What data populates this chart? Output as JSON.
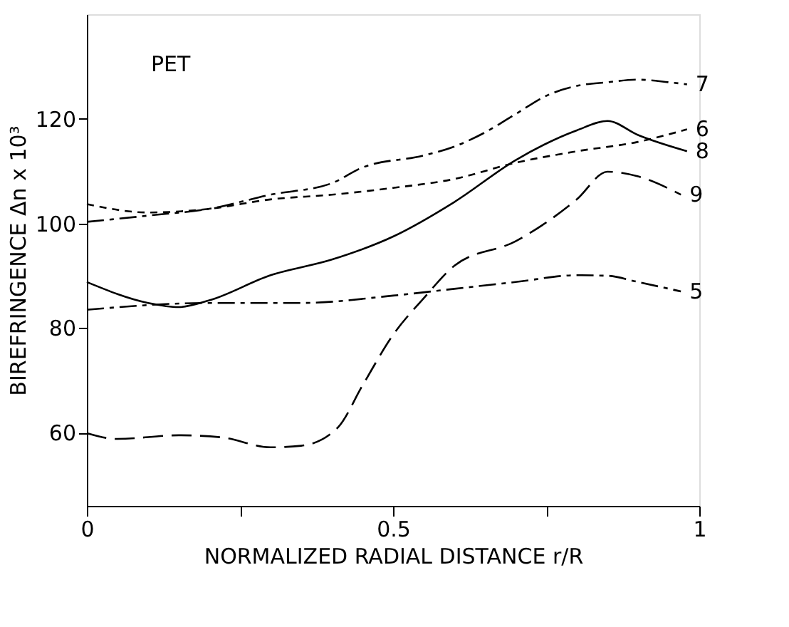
{
  "chart_data": {
    "type": "line",
    "xlabel": "NORMALIZED RADIAL DISTANCE    r/R",
    "ylabel": "BIREFRINGENCE    Δn x 10³",
    "annotations": [
      "PET"
    ],
    "xlim": [
      0,
      1
    ],
    "xticks": [
      0,
      {
        "value": 0.25,
        "label": null
      },
      0.5,
      {
        "value": 0.75,
        "label": null
      },
      1
    ],
    "ylim": [
      46,
      140
    ],
    "yticks": [
      60,
      80,
      100,
      120
    ],
    "grid": false,
    "marker": "none",
    "series": [
      {
        "name": "7",
        "color": "#000000",
        "line_style": "dashdot",
        "x": [
          0,
          0.1,
          0.2,
          0.3,
          0.4,
          0.45,
          0.55,
          0.6,
          0.65,
          0.7,
          0.75,
          0.8,
          0.85,
          0.9,
          0.95,
          0.98
        ],
        "values": [
          100.3,
          101.5,
          102.8,
          105.5,
          107.7,
          110.7,
          113,
          114.7,
          117.4,
          120.9,
          124.4,
          126.3,
          127,
          127.5,
          127,
          126.6
        ]
      },
      {
        "name": "6",
        "color": "#000000",
        "line_style": "dotted",
        "x": [
          0,
          0.1,
          0.2,
          0.3,
          0.4,
          0.5,
          0.6,
          0.7,
          0.8,
          0.9,
          0.98
        ],
        "values": [
          103.7,
          102.1,
          102.8,
          104.6,
          105.5,
          106.8,
          108.5,
          111.6,
          113.8,
          115.6,
          118
        ]
      },
      {
        "name": "8",
        "color": "#000000",
        "line_style": "solid",
        "x": [
          0,
          0.1,
          0.15,
          0.2,
          0.3,
          0.4,
          0.5,
          0.6,
          0.7,
          0.8,
          0.85,
          0.9,
          0.98
        ],
        "values": [
          88.8,
          84.8,
          84,
          85.3,
          90.1,
          93.1,
          97.5,
          104.1,
          112.1,
          117.8,
          119.6,
          116.9,
          113.8
        ]
      },
      {
        "name": "9",
        "color": "#000000",
        "line_style": "dashed",
        "x": [
          0,
          0.05,
          0.15,
          0.22,
          0.3,
          0.35,
          0.41,
          0.45,
          0.5,
          0.55,
          0.6,
          0.7,
          0.8,
          0.85,
          0.9,
          0.97
        ],
        "values": [
          59.9,
          58.8,
          59.5,
          59.1,
          57.2,
          57.5,
          61,
          69,
          78.7,
          85.7,
          91.9,
          96.6,
          104.6,
          109.9,
          109,
          105.5
        ]
      },
      {
        "name": "5",
        "color": "#000000",
        "line_style": "dashdot",
        "x": [
          0,
          0.2,
          0.35,
          0.5,
          0.6,
          0.7,
          0.8,
          0.85,
          0.9,
          0.97
        ],
        "values": [
          83.5,
          84.8,
          84.8,
          86.2,
          87.5,
          88.8,
          90.1,
          90,
          88.8,
          87
        ]
      }
    ]
  }
}
